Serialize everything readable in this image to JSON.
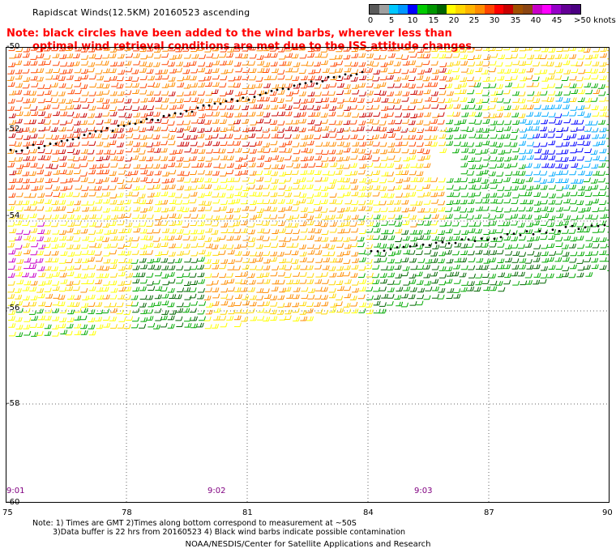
{
  "title": "Rapidscat Winds(12.5KM) 20160523 ascending",
  "note": {
    "line1": "Note: black circles have been added to the wind barbs, wherever less than",
    "line2": "optimal wind retrieval conditions are met due to the ISS attitude changes."
  },
  "colorbar": {
    "colors": [
      "#5a5a5a",
      "#a0a0a0",
      "#00c8ff",
      "#0096ff",
      "#0000ff",
      "#00cc00",
      "#009600",
      "#006400",
      "#ffff00",
      "#ffd700",
      "#ffb400",
      "#ff8c00",
      "#ff4500",
      "#ff0000",
      "#c80000",
      "#a05000",
      "#8b4513",
      "#c800c8",
      "#ff00ff",
      "#9600c8",
      "#640096",
      "#4b0082"
    ],
    "labels": [
      "0",
      "5",
      "10",
      "15",
      "20",
      "25",
      "30",
      "35",
      "40",
      "45",
      ">50 knots"
    ]
  },
  "lat_labels": [
    "-50",
    "-52",
    "-54",
    "-56",
    "-58",
    "-60"
  ],
  "lon_labels": [
    "75",
    "78",
    "81",
    "84",
    "87",
    "90"
  ],
  "time_labels": [
    "9:01",
    "9:02",
    "9:03"
  ],
  "footnotes": {
    "line1": "Note: 1) Times are GMT 2)Times along bottom correspond to measurement at ~50S",
    "line2": "3)Data buffer is 22 hrs from 20160523 4) Black wind barbs indicate possible contamination"
  },
  "credit": "NOAA/NESDIS/Center for Satellite Applications and Research",
  "map": {
    "lon_range": [
      75,
      90
    ],
    "lat_range": [
      -50,
      -60
    ],
    "grid": true,
    "wind_field_colors": {
      "calm": "#ffff00",
      "light": "#ffd700",
      "moderate": "#ff8c00",
      "strong": "#ff4500",
      "very_strong": "#c80000",
      "green": "#00aa00",
      "dark_green": "#006400",
      "blue": "#0000ff",
      "cyan": "#00aaff",
      "purple": "#c800c8"
    }
  }
}
